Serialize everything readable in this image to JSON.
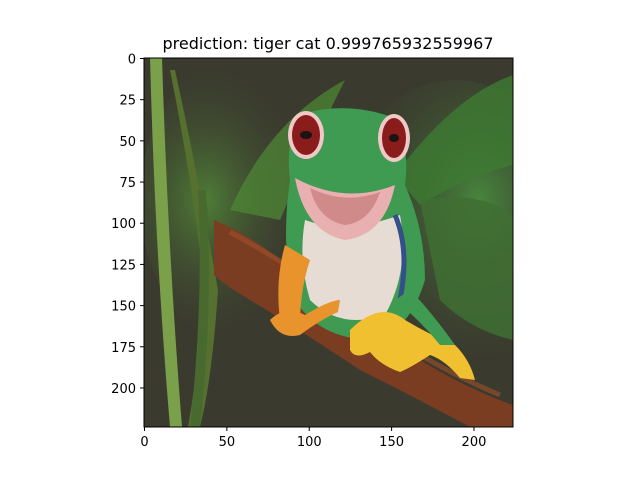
{
  "chart_data": {
    "type": "image",
    "title": "prediction: tiger cat 0.999765932559967",
    "xlabel": "",
    "ylabel": "",
    "xlim": [
      0,
      224
    ],
    "ylim": [
      224,
      0
    ],
    "x_ticks": [
      0,
      50,
      100,
      150,
      200
    ],
    "y_ticks": [
      0,
      25,
      50,
      75,
      100,
      125,
      150,
      175,
      200
    ],
    "grid": false,
    "image_subject": "red-eyed tree frog on branch",
    "colors": {
      "background": "#3a3a2e",
      "leaf_green": "#3f7a36",
      "frog_green": "#3f9a52",
      "eye_red": "#8a1c1c",
      "mouth_pink": "#e8b0b0",
      "branch_brown": "#7a3d22",
      "toe_orange": "#e8932c"
    }
  }
}
